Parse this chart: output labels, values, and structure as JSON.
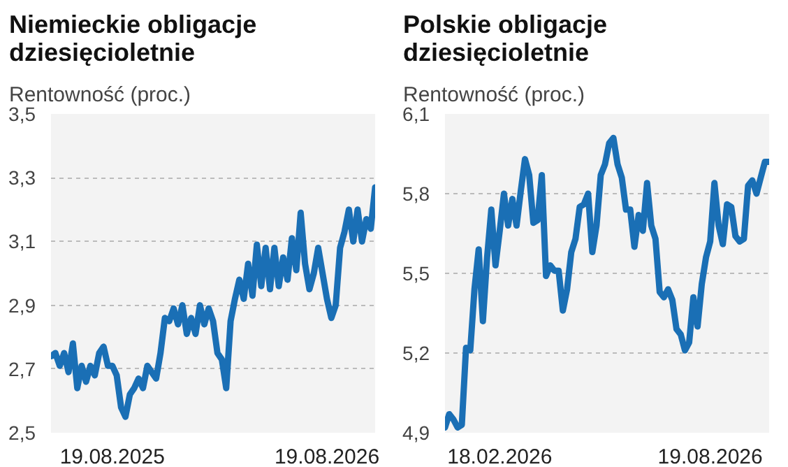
{
  "chart_data": [
    {
      "type": "line",
      "title": "Niemieckie obligacje\ndziesięcioletnie",
      "subtitle": "Rentowność (proc.)",
      "categories": [
        null,
        null,
        null,
        null,
        null,
        null,
        null,
        null,
        null,
        null,
        null,
        null,
        null,
        null,
        "19.08.2025",
        null,
        null,
        null,
        null,
        null,
        null,
        null,
        null,
        null,
        null,
        null,
        null,
        null,
        null,
        null,
        null,
        null,
        null,
        null,
        null,
        null,
        null,
        null,
        null,
        null,
        null,
        null,
        null,
        null,
        null,
        null,
        null,
        null,
        null,
        null,
        null,
        null,
        null,
        null,
        null,
        null,
        null,
        null,
        null,
        null,
        null,
        null,
        null,
        "19.08.2026",
        null,
        null,
        null,
        null,
        null,
        null,
        null,
        null,
        null,
        null,
        null
      ],
      "series": [
        {
          "color": "#1a6fb5",
          "values": [
            2.74,
            2.75,
            2.71,
            2.75,
            2.69,
            2.78,
            2.64,
            2.71,
            2.66,
            2.71,
            2.68,
            2.75,
            2.77,
            2.71,
            2.71,
            2.68,
            2.58,
            2.55,
            2.62,
            2.64,
            2.67,
            2.64,
            2.71,
            2.69,
            2.67,
            2.75,
            2.86,
            2.85,
            2.89,
            2.84,
            2.9,
            2.81,
            2.86,
            2.81,
            2.9,
            2.84,
            2.89,
            2.85,
            2.75,
            2.73,
            2.64,
            2.85,
            2.92,
            2.98,
            2.92,
            3.03,
            2.93,
            3.09,
            2.96,
            3.08,
            2.95,
            3.08,
            2.96,
            3.05,
            2.98,
            3.11,
            3.01,
            3.19,
            3.03,
            2.95,
            3.0,
            3.08,
            3.0,
            2.92,
            2.86,
            2.9,
            3.08,
            3.13,
            3.2,
            3.1,
            3.2,
            3.1,
            3.17,
            3.14,
            3.27
          ]
        }
      ],
      "ylim": [
        2.5,
        3.5
      ],
      "yticks": [
        {
          "value": 2.5,
          "label": "2,5"
        },
        {
          "value": 2.7,
          "label": "2,7"
        },
        {
          "value": 2.9,
          "label": "2,9"
        },
        {
          "value": 3.1,
          "label": "3,1"
        },
        {
          "value": 3.3,
          "label": "3,3"
        },
        {
          "value": 3.5,
          "label": "3,5"
        }
      ],
      "grid": "y",
      "line_style": "solid"
    },
    {
      "type": "line",
      "title": "Polskie obligacje\ndziesięcioletnie",
      "subtitle": "Rentowność (proc.)",
      "categories": [
        null,
        null,
        null,
        null,
        null,
        null,
        null,
        null,
        null,
        null,
        null,
        null,
        null,
        "18.02.2026",
        null,
        null,
        null,
        null,
        null,
        null,
        null,
        null,
        null,
        null,
        null,
        null,
        null,
        null,
        null,
        null,
        null,
        null,
        null,
        null,
        null,
        null,
        null,
        null,
        null,
        null,
        null,
        null,
        null,
        null,
        null,
        null,
        null,
        null,
        null,
        null,
        null,
        null,
        null,
        null,
        null,
        null,
        null,
        null,
        null,
        null,
        null,
        null,
        null,
        "19.08.2026",
        null,
        null,
        null,
        null,
        null,
        null,
        null,
        null,
        null,
        null,
        null,
        null,
        null,
        null
      ],
      "series": [
        {
          "color": "#1a6fb5",
          "values": [
            4.92,
            4.97,
            4.95,
            4.92,
            4.93,
            5.22,
            5.21,
            5.44,
            5.59,
            5.32,
            5.56,
            5.74,
            5.53,
            5.66,
            5.8,
            5.68,
            5.78,
            5.68,
            5.81,
            5.93,
            5.87,
            5.69,
            5.7,
            5.87,
            5.49,
            5.53,
            5.51,
            5.51,
            5.36,
            5.44,
            5.58,
            5.63,
            5.75,
            5.76,
            5.8,
            5.58,
            5.68,
            5.87,
            5.91,
            5.99,
            6.01,
            5.91,
            5.86,
            5.74,
            5.74,
            5.6,
            5.72,
            5.66,
            5.84,
            5.68,
            5.63,
            5.43,
            5.41,
            5.44,
            5.4,
            5.29,
            5.27,
            5.21,
            5.24,
            5.41,
            5.3,
            5.46,
            5.56,
            5.62,
            5.84,
            5.68,
            5.61,
            5.76,
            5.75,
            5.64,
            5.62,
            5.63,
            5.83,
            5.85,
            5.8,
            5.86,
            5.92,
            5.92
          ]
        }
      ],
      "ylim": [
        4.9,
        6.1
      ],
      "yticks": [
        {
          "value": 4.9,
          "label": "4,9"
        },
        {
          "value": 5.2,
          "label": "5,2"
        },
        {
          "value": 5.5,
          "label": "5,5"
        },
        {
          "value": 5.8,
          "label": "5,8"
        },
        {
          "value": 6.1,
          "label": "6,1"
        }
      ],
      "grid": "y",
      "line_style": "solid"
    }
  ]
}
